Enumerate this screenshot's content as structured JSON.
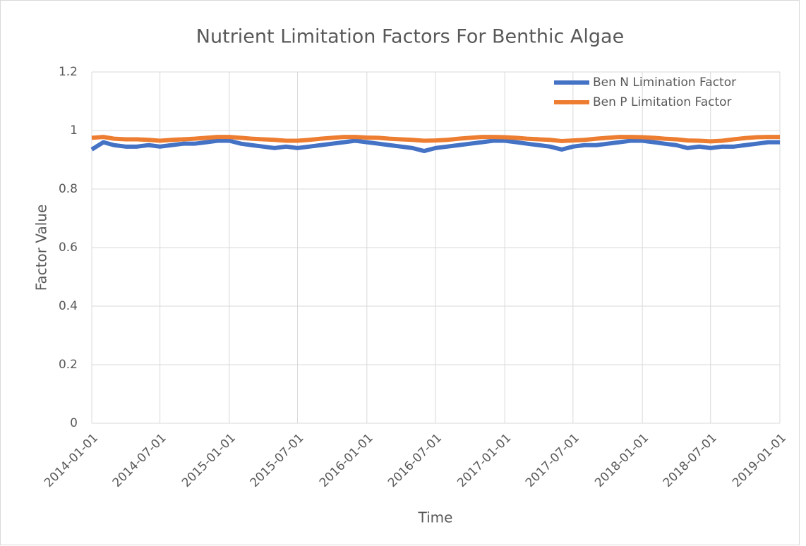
{
  "chart_data": {
    "type": "line",
    "title": "Nutrient Limitation Factors For Benthic Algae",
    "x_label": "Time",
    "y_label": "Factor Value",
    "x": [
      "2014-01-01",
      "2014-02-01",
      "2014-03-01",
      "2014-04-01",
      "2014-05-01",
      "2014-06-01",
      "2014-07-01",
      "2014-08-01",
      "2014-09-01",
      "2014-10-01",
      "2014-11-01",
      "2014-12-01",
      "2015-01-01",
      "2015-02-01",
      "2015-03-01",
      "2015-04-01",
      "2015-05-01",
      "2015-06-01",
      "2015-07-01",
      "2015-08-01",
      "2015-09-01",
      "2015-10-01",
      "2015-11-01",
      "2015-12-01",
      "2016-01-01",
      "2016-02-01",
      "2016-03-01",
      "2016-04-01",
      "2016-05-01",
      "2016-06-01",
      "2016-07-01",
      "2016-08-01",
      "2016-09-01",
      "2016-10-01",
      "2016-11-01",
      "2016-12-01",
      "2017-01-01",
      "2017-02-01",
      "2017-03-01",
      "2017-04-01",
      "2017-05-01",
      "2017-06-01",
      "2017-07-01",
      "2017-08-01",
      "2017-09-01",
      "2017-10-01",
      "2017-11-01",
      "2017-12-01",
      "2018-01-01",
      "2018-02-01",
      "2018-03-01",
      "2018-04-01",
      "2018-05-01",
      "2018-06-01",
      "2018-07-01",
      "2018-08-01",
      "2018-09-01",
      "2018-10-01",
      "2018-11-01",
      "2018-12-01",
      "2019-01-01"
    ],
    "series": [
      {
        "name": "Ben N Limination Factor",
        "color": "#4472c4",
        "values": [
          0.935,
          0.96,
          0.95,
          0.945,
          0.945,
          0.95,
          0.945,
          0.95,
          0.955,
          0.955,
          0.96,
          0.965,
          0.965,
          0.955,
          0.95,
          0.945,
          0.94,
          0.945,
          0.94,
          0.945,
          0.95,
          0.955,
          0.96,
          0.965,
          0.96,
          0.955,
          0.95,
          0.945,
          0.94,
          0.93,
          0.94,
          0.945,
          0.95,
          0.955,
          0.96,
          0.965,
          0.965,
          0.96,
          0.955,
          0.95,
          0.945,
          0.935,
          0.945,
          0.95,
          0.95,
          0.955,
          0.96,
          0.965,
          0.965,
          0.96,
          0.955,
          0.95,
          0.94,
          0.945,
          0.94,
          0.945,
          0.945,
          0.95,
          0.955,
          0.96,
          0.96
        ]
      },
      {
        "name": "Ben P Limitation Factor",
        "color": "#ed7d31",
        "values": [
          0.975,
          0.978,
          0.972,
          0.97,
          0.97,
          0.968,
          0.965,
          0.968,
          0.97,
          0.972,
          0.975,
          0.978,
          0.978,
          0.975,
          0.972,
          0.97,
          0.968,
          0.965,
          0.965,
          0.968,
          0.972,
          0.975,
          0.978,
          0.978,
          0.976,
          0.975,
          0.972,
          0.97,
          0.968,
          0.965,
          0.966,
          0.968,
          0.972,
          0.975,
          0.978,
          0.978,
          0.977,
          0.975,
          0.972,
          0.97,
          0.968,
          0.964,
          0.966,
          0.968,
          0.972,
          0.975,
          0.978,
          0.978,
          0.977,
          0.975,
          0.972,
          0.97,
          0.966,
          0.965,
          0.963,
          0.965,
          0.97,
          0.974,
          0.977,
          0.978,
          0.978
        ]
      }
    ],
    "xlim": [
      "2014-01-01",
      "2019-01-01"
    ],
    "xticks": [
      "2014-01-01",
      "2014-07-01",
      "2015-01-01",
      "2015-07-01",
      "2016-01-01",
      "2016-07-01",
      "2017-01-01",
      "2017-07-01",
      "2018-01-01",
      "2018-07-01",
      "2019-01-01"
    ],
    "ylim": [
      0,
      1.2
    ],
    "yticks": [
      0,
      0.2,
      0.4,
      0.6,
      0.8,
      1,
      1.2
    ],
    "grid": true,
    "legend": "top-right"
  }
}
